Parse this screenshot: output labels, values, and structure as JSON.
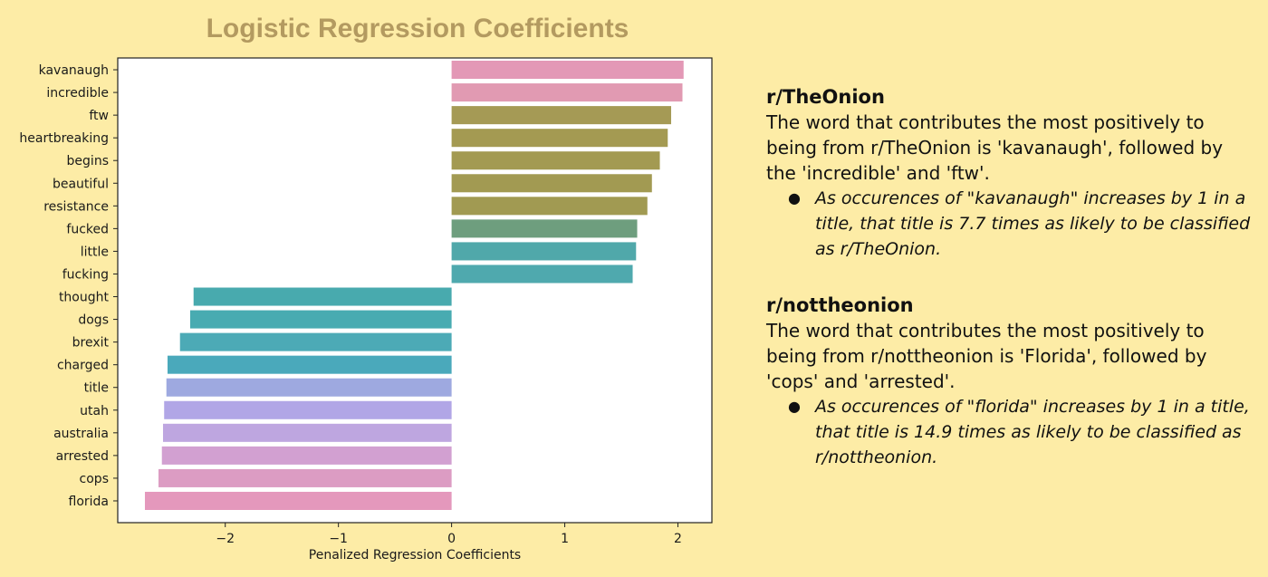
{
  "chart_data": {
    "type": "bar",
    "orientation": "horizontal",
    "title": "Logistic Regression Coefficients",
    "xlabel": "Penalized Regression Coefficients",
    "ylabel": "",
    "xlim": [
      -2.95,
      2.3
    ],
    "xticks": [
      -2,
      -1,
      0,
      1,
      2
    ],
    "xtick_labels": [
      "−2",
      "−1",
      "0",
      "1",
      "2"
    ],
    "grid": false,
    "categories": [
      "kavanaugh",
      "incredible",
      "ftw",
      "heartbreaking",
      "begins",
      "beautiful",
      "resistance",
      "fucked",
      "little",
      "fucking",
      "thought",
      "dogs",
      "brexit",
      "charged",
      "title",
      "utah",
      "australia",
      "arrested",
      "cops",
      "florida"
    ],
    "values": [
      2.05,
      2.04,
      1.94,
      1.91,
      1.84,
      1.77,
      1.73,
      1.64,
      1.63,
      1.6,
      -2.28,
      -2.31,
      -2.4,
      -2.51,
      -2.52,
      -2.54,
      -2.55,
      -2.56,
      -2.59,
      -2.71
    ],
    "colors": [
      "#e398b6",
      "#e19ab2",
      "#a59a55",
      "#a49a52",
      "#a39a52",
      "#a29a52",
      "#a19a52",
      "#6e9e7e",
      "#50a8aa",
      "#4fa9ae",
      "#48aaae",
      "#48abb1",
      "#4caab6",
      "#4aa9bb",
      "#9ea9e0",
      "#b1a6e6",
      "#bea6e0",
      "#d2a0d1",
      "#dc9cc3",
      "#e498bc"
    ]
  },
  "notes": {
    "onion": {
      "heading": "r/TheOnion",
      "body": "The word that contributes the most positively to being from r/TheOnion is 'kavanaugh', followed by the 'incredible' and 'ftw'.",
      "bullet": "As occurences of \"kavanaugh\" increases by 1 in a title, that title is 7.7 times as likely to be classified as r/TheOnion."
    },
    "nottheonion": {
      "heading": "r/nottheonion",
      "body": "The word that contributes the most positively to being from r/nottheonion is 'Florida', followed by 'cops' and 'arrested'.",
      "bullet": "As occurences of \"florida\" increases by 1 in a title, that title is 14.9 times as likely to be classified as r/nottheonion."
    },
    "bullet_symbol": "●"
  }
}
